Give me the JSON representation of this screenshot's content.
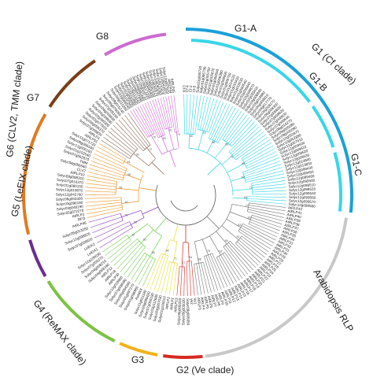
{
  "groups": [
    {
      "key": "g1",
      "label": "G1 (Cf clade)",
      "color": "#1aa0d8"
    },
    {
      "key": "g1a",
      "label": "G1-A",
      "color": "#38d6e8"
    },
    {
      "key": "g1b",
      "label": "G1-B",
      "color": "#38d6e8"
    },
    {
      "key": "g1c",
      "label": "G1-C",
      "color": "#38d6e8"
    },
    {
      "key": "rlp",
      "label": "Arabidopsis RLP",
      "color": "#c8c8c8"
    },
    {
      "key": "g2",
      "label": "G2 (Ve clade)",
      "color": "#d62a20"
    },
    {
      "key": "g3",
      "label": "G3",
      "color": "#f2b21a"
    },
    {
      "key": "g4",
      "label": "G4 (ReMAX clade)",
      "color": "#7cc242"
    },
    {
      "key": "g5",
      "label": "G5 (LeEIX clade)",
      "color": "#6a2d8f"
    },
    {
      "key": "g6",
      "label": "G6 (CLV2, TMM clade)",
      "color": "#e07a22"
    },
    {
      "key": "g7",
      "label": "G7",
      "color": "#7a3e16"
    },
    {
      "key": "g8",
      "label": "G8",
      "color": "#cc6ad0"
    }
  ],
  "clades": [
    {
      "key": "g1",
      "color": "#2fd4e6",
      "labels": [
        "Cf-9",
        "Cf-4",
        "Cf-2",
        "Cf-5",
        "Solyc01g005720",
        "Solyc01g005730",
        "Solyc01g005760",
        "Solyc01g005870",
        "Solyc01g006550",
        "Solyc01g008390",
        "Solyc01g009690",
        "Solyc01g009700",
        "Solyc01g014120",
        "Solyc01g016410",
        "Solyc01g016530",
        "Solyc01g080540",
        "Solyc02g006840",
        "Solyc02g009870",
        "Solyc02g033410",
        "Solyc03g006840",
        "Solyc03g019880",
        "Solyc04g009810",
        "Solyc04g017770",
        "Solyc06g008270",
        "Solyc06g008300",
        "Solyc07g008600",
        "Solyc07g008620",
        "Solyc07g008630",
        "Solyc07g008640",
        "Solyc08g016270",
        "Solyc09g005080",
        "Solyc09g005090",
        "Solyc10g052870",
        "Solyc10g052880",
        "Solyc11g007910",
        "Solyc12g009500",
        "Solyc12g009510",
        "Solyc12g009520",
        "Solyc12g009530",
        "Solyc12g013840",
        "Solyc12g013850",
        "Solyc12g099430",
        "Solyc12g099450",
        "Solyc12g099460",
        "Solyc12g099500",
        "Solyc12g099510",
        "Solyc12g099520",
        "Solyc12g099540",
        "Solyc12g099560",
        "Solyc12g099570",
        "Solyc12g099580"
      ]
    },
    {
      "key": "rlp",
      "color": "#7a7a7a",
      "labels": [
        "AtRLP42",
        "AtRLP41",
        "AtRLP40",
        "AtRLP39",
        "AtRLP38",
        "AtRLP37",
        "AtRLP36",
        "AtRLP35",
        "AtRLP34",
        "AtRLP33",
        "AtRLP32",
        "AtRLP31",
        "AtRLP30",
        "AtRLP29",
        "AtRLP28",
        "AtRLP27",
        "AtRLP26",
        "AtRLP25",
        "AtRLP24",
        "AtRLP23",
        "AtRLP22",
        "AtRLP21",
        "AtRLP20",
        "AtRLP19",
        "AtRLP18",
        "AtRLP17",
        "AtRLP16",
        "AtRLP15",
        "AtRLP14",
        "AtRLP13",
        "AtRLP12",
        "AtRLP11",
        "AtRLP10",
        "AtRLP9",
        "AtRLP8",
        "AtRLP7",
        "AtRLP6",
        "AtRLP5",
        "AtRLP4",
        "AtRLP3"
      ]
    },
    {
      "key": "g2",
      "color": "#d62a20",
      "labels": [
        "Ve1",
        "Ve2",
        "Solyc09g005050",
        "Solyc09g005020",
        "Solyc09g005010",
        "AtRLP13"
      ]
    },
    {
      "key": "g3",
      "color": "#e8e030",
      "labels": [
        "AtRLP1",
        "AtRLP2",
        "Solyc01g100010",
        "Solyc03g007030",
        "Solyc03g112680",
        "Solyc07g005190",
        "Solyc09g098420",
        "Solyc11g011180"
      ]
    },
    {
      "key": "g4",
      "color": "#6fd04a",
      "labels": [
        "ReMAX",
        "Solyc01g096960",
        "Solyc01g097270",
        "Solyc06g054350",
        "Solyc07g008090",
        "Solyc12g019960",
        "AtRLP30",
        "AtRLP18",
        "AtRLP12",
        "Solyc04g008160",
        "Solyc04g008210",
        "Solyc07g055370",
        "Solyc12g100030"
      ]
    },
    {
      "key": "g5",
      "color": "#8a3dbb",
      "labels": [
        "LeEIX1",
        "LeEIX2",
        "Solyc07g008620",
        "Solyc12g098820",
        "Solyc05g013250",
        "AtRLP46"
      ]
    },
    {
      "key": "g6",
      "color": "#e8942a",
      "labels": [
        "RFO",
        "AtRLP2",
        "Solyc02g072270",
        "Solyc03g046190",
        "Solyc03g096190",
        "Solyc06g053300",
        "Solyc12g042760",
        "Solyc12g019870",
        "Solyc01g080150",
        "Solyc07g016370",
        "Solyc09g098310",
        "AtRLP10",
        "CLV2",
        "Solyc04g056640",
        "TMM",
        "Solyc07g062870",
        "Solyc01g102540",
        "Solyc12g006160",
        "Solyc08g068330",
        "Solyc11g071720",
        "AtRLP51"
      ]
    },
    {
      "key": "g7",
      "color": "#8a6a58",
      "labels": [
        "AtRLP4",
        "Solyc07g008830",
        "Solyc08g006370",
        "Solyc02g077920",
        "Solyc02g090300",
        "Solyc04g039580",
        "Solyc06g059630",
        "Solyc07g005190",
        "Solyc08g076050",
        "Solyc09g015240",
        "Solyc09g015260"
      ]
    },
    {
      "key": "g8",
      "color": "#cc6ad0",
      "labels": [
        "Solyc01g066540",
        "Solyc01g107840",
        "Solyc02g080080",
        "Solyc03g111860",
        "Solyc03g113340",
        "Solyc04g007890",
        "Solyc04g082680",
        "Solyc05g009710",
        "Solyc06g071100",
        "Solyc08g045800",
        "Solyc08g081530",
        "Solyc10g050570",
        "Solyc10g083260",
        "Solyc11g072420",
        "Solyc12g042970",
        "Solyc12g087920",
        "AtRLP44",
        "AtRLP45"
      ]
    }
  ]
}
